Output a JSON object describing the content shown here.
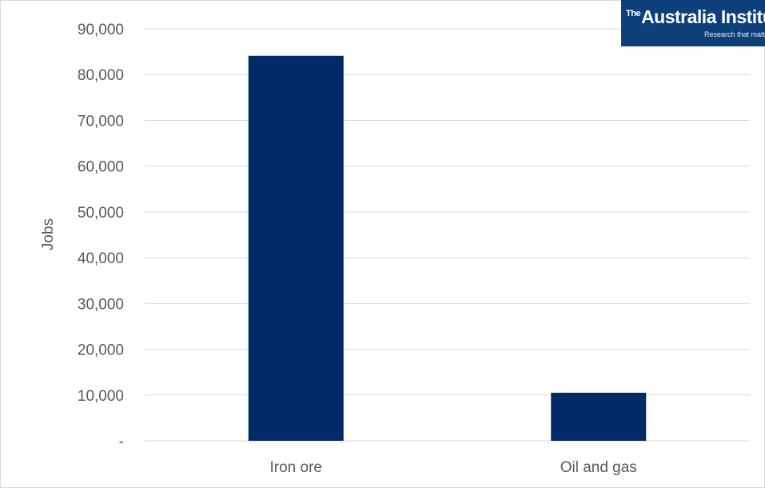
{
  "chart_data": {
    "type": "bar",
    "categories": [
      "Iron ore",
      "Oil and gas"
    ],
    "values": [
      84100,
      10500
    ],
    "title": "",
    "xlabel": "",
    "ylabel": "Jobs",
    "ylim": [
      0,
      90000
    ],
    "y_ticks": [
      0,
      10000,
      20000,
      30000,
      40000,
      50000,
      60000,
      70000,
      80000,
      90000
    ],
    "y_tick_labels": [
      "-",
      "10,000",
      "20,000",
      "30,000",
      "40,000",
      "50,000",
      "60,000",
      "70,000",
      "80,000",
      "90,000"
    ],
    "grid": true,
    "legend": "none",
    "bar_color": "#002b66",
    "grid_color": "#d9d9d9",
    "text_color": "#595959"
  },
  "logo": {
    "the": "The",
    "name": "Australia Institute",
    "tagline": "Research that matters."
  }
}
